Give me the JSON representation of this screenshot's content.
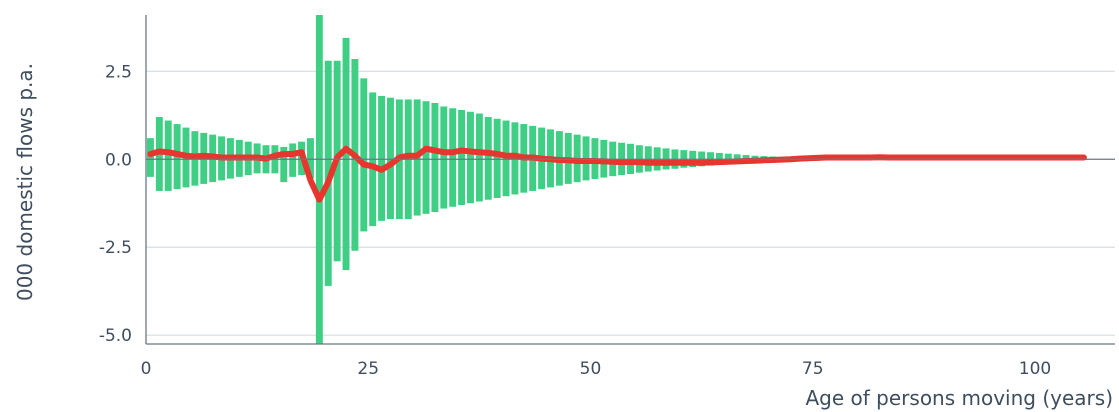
{
  "chart_data": {
    "type": "bar",
    "title": "",
    "xlabel": "Age of persons moving (years)",
    "ylabel": "000 domestic flows p.a.",
    "xlim": [
      0,
      109
    ],
    "ylim": [
      -5.25,
      4.1
    ],
    "x_ticks": [
      0,
      25,
      50,
      75,
      100
    ],
    "x_tick_labels": [
      "0",
      "25",
      "50",
      "75",
      "100"
    ],
    "y_ticks": [
      2.5,
      0.0,
      -2.5,
      -5.0
    ],
    "y_tick_labels": [
      "2.5",
      "0.0",
      "-2.5",
      "-5.0"
    ],
    "grid": "horizontal",
    "legend": "none",
    "colors": {
      "bars": "#3ecf84",
      "line": "#e8352e",
      "text": "#3f4e5f",
      "grid": "#d5dde4",
      "axis": "#6b7785"
    },
    "series": [
      {
        "kind": "range_bars",
        "ages": [
          0,
          1,
          2,
          3,
          4,
          5,
          6,
          7,
          8,
          9,
          10,
          11,
          12,
          13,
          14,
          15,
          16,
          17,
          18,
          19,
          20,
          21,
          22,
          23,
          24,
          25,
          26,
          27,
          28,
          29,
          30,
          31,
          32,
          33,
          34,
          35,
          36,
          37,
          38,
          39,
          40,
          41,
          42,
          43,
          44,
          45,
          46,
          47,
          48,
          49,
          50,
          51,
          52,
          53,
          54,
          55,
          56,
          57,
          58,
          59,
          60,
          61,
          62,
          63,
          64,
          65,
          66,
          67,
          68,
          69,
          70,
          71,
          72,
          73,
          74,
          75,
          76,
          77,
          78,
          79,
          80,
          81,
          82,
          83,
          84,
          85,
          86,
          87,
          88,
          89,
          90,
          91,
          92,
          93,
          94,
          95,
          96,
          97,
          98,
          99,
          100,
          101,
          102,
          103,
          104,
          105
        ],
        "upper": [
          0.6,
          1.2,
          1.1,
          1.0,
          0.9,
          0.8,
          0.75,
          0.7,
          0.65,
          0.6,
          0.55,
          0.5,
          0.45,
          0.4,
          0.4,
          0.35,
          0.45,
          0.5,
          0.6,
          4.1,
          2.8,
          2.8,
          3.45,
          2.85,
          2.3,
          1.9,
          1.8,
          1.75,
          1.7,
          1.7,
          1.7,
          1.65,
          1.6,
          1.5,
          1.45,
          1.4,
          1.35,
          1.3,
          1.2,
          1.15,
          1.1,
          1.05,
          1.0,
          0.95,
          0.9,
          0.85,
          0.8,
          0.75,
          0.7,
          0.65,
          0.6,
          0.55,
          0.5,
          0.47,
          0.44,
          0.4,
          0.37,
          0.34,
          0.31,
          0.28,
          0.26,
          0.24,
          0.22,
          0.2,
          0.18,
          0.16,
          0.14,
          0.12,
          0.1,
          0.09,
          0.08,
          0.07,
          0.06,
          0.05,
          0.045,
          0.04,
          0.035,
          0.03,
          0.025,
          0.02,
          0.02,
          0.02,
          0.02,
          0.02,
          0.02,
          0.02,
          0.02,
          0.02,
          0.02,
          0.02,
          0.02,
          0.02,
          0.02,
          0.02,
          0.02,
          0.02,
          0.02,
          0.02,
          0.02,
          0.02,
          0.02,
          0.02,
          0.02,
          0.02,
          0.02,
          0.02
        ],
        "lower": [
          -0.5,
          -0.9,
          -0.9,
          -0.85,
          -0.8,
          -0.75,
          -0.7,
          -0.65,
          -0.6,
          -0.55,
          -0.5,
          -0.45,
          -0.4,
          -0.4,
          -0.4,
          -0.65,
          -0.5,
          -0.45,
          -0.55,
          -5.25,
          -3.6,
          -2.9,
          -3.15,
          -2.6,
          -2.05,
          -1.9,
          -1.75,
          -1.7,
          -1.7,
          -1.7,
          -1.6,
          -1.55,
          -1.5,
          -1.4,
          -1.35,
          -1.3,
          -1.25,
          -1.2,
          -1.15,
          -1.1,
          -1.05,
          -1.0,
          -0.95,
          -0.9,
          -0.85,
          -0.8,
          -0.75,
          -0.7,
          -0.65,
          -0.6,
          -0.56,
          -0.52,
          -0.48,
          -0.45,
          -0.42,
          -0.38,
          -0.35,
          -0.32,
          -0.29,
          -0.27,
          -0.24,
          -0.22,
          -0.2,
          -0.18,
          -0.16,
          -0.14,
          -0.12,
          -0.11,
          -0.1,
          -0.09,
          -0.08,
          -0.07,
          -0.06,
          -0.05,
          -0.04,
          -0.04,
          -0.03,
          -0.03,
          -0.03,
          -0.02,
          -0.02,
          -0.02,
          -0.02,
          -0.02,
          -0.02,
          -0.02,
          -0.02,
          -0.02,
          -0.02,
          -0.02,
          -0.02,
          -0.02,
          -0.02,
          -0.02,
          -0.02,
          -0.02,
          -0.02,
          -0.02,
          -0.02,
          -0.02,
          -0.02,
          -0.02,
          -0.02,
          -0.02,
          -0.02,
          -0.02
        ]
      },
      {
        "kind": "line",
        "ages": [
          0,
          1,
          2,
          3,
          4,
          5,
          6,
          7,
          8,
          9,
          10,
          11,
          12,
          13,
          14,
          15,
          16,
          17,
          18,
          19,
          20,
          21,
          22,
          23,
          24,
          25,
          26,
          27,
          28,
          29,
          30,
          31,
          32,
          33,
          34,
          35,
          36,
          37,
          38,
          39,
          40,
          41,
          42,
          43,
          44,
          45,
          46,
          47,
          48,
          49,
          50,
          51,
          52,
          53,
          54,
          55,
          56,
          57,
          58,
          59,
          60,
          61,
          62,
          63,
          64,
          65,
          66,
          67,
          68,
          69,
          70,
          71,
          72,
          73,
          74,
          75,
          76,
          77,
          78,
          79,
          80,
          81,
          82,
          83,
          84,
          85,
          86,
          87,
          88,
          89,
          90,
          91,
          92,
          93,
          94,
          95,
          96,
          97,
          98,
          99,
          100,
          101,
          102,
          103,
          104,
          105
        ],
        "values": [
          0.15,
          0.22,
          0.2,
          0.15,
          0.1,
          0.08,
          0.1,
          0.08,
          0.05,
          0.05,
          0.05,
          0.05,
          0.05,
          0.02,
          0.1,
          0.15,
          0.15,
          0.2,
          -0.6,
          -1.15,
          -0.65,
          0.05,
          0.3,
          0.1,
          -0.15,
          -0.2,
          -0.3,
          -0.15,
          0.05,
          0.1,
          0.1,
          0.3,
          0.25,
          0.2,
          0.2,
          0.25,
          0.22,
          0.2,
          0.18,
          0.15,
          0.1,
          0.1,
          0.05,
          0.05,
          0.02,
          0.0,
          -0.02,
          -0.03,
          -0.05,
          -0.05,
          -0.05,
          -0.06,
          -0.07,
          -0.08,
          -0.08,
          -0.08,
          -0.1,
          -0.1,
          -0.1,
          -0.1,
          -0.1,
          -0.1,
          -0.1,
          -0.09,
          -0.08,
          -0.07,
          -0.06,
          -0.05,
          -0.04,
          -0.03,
          -0.02,
          -0.01,
          0.0,
          0.02,
          0.03,
          0.04,
          0.05,
          0.05,
          0.05,
          0.05,
          0.05,
          0.05,
          0.06,
          0.05,
          0.05,
          0.05,
          0.05,
          0.05,
          0.05,
          0.05,
          0.05,
          0.05,
          0.05,
          0.05,
          0.05,
          0.05,
          0.05,
          0.05,
          0.05,
          0.05,
          0.05,
          0.05,
          0.05,
          0.05,
          0.05,
          0.05
        ]
      }
    ]
  }
}
